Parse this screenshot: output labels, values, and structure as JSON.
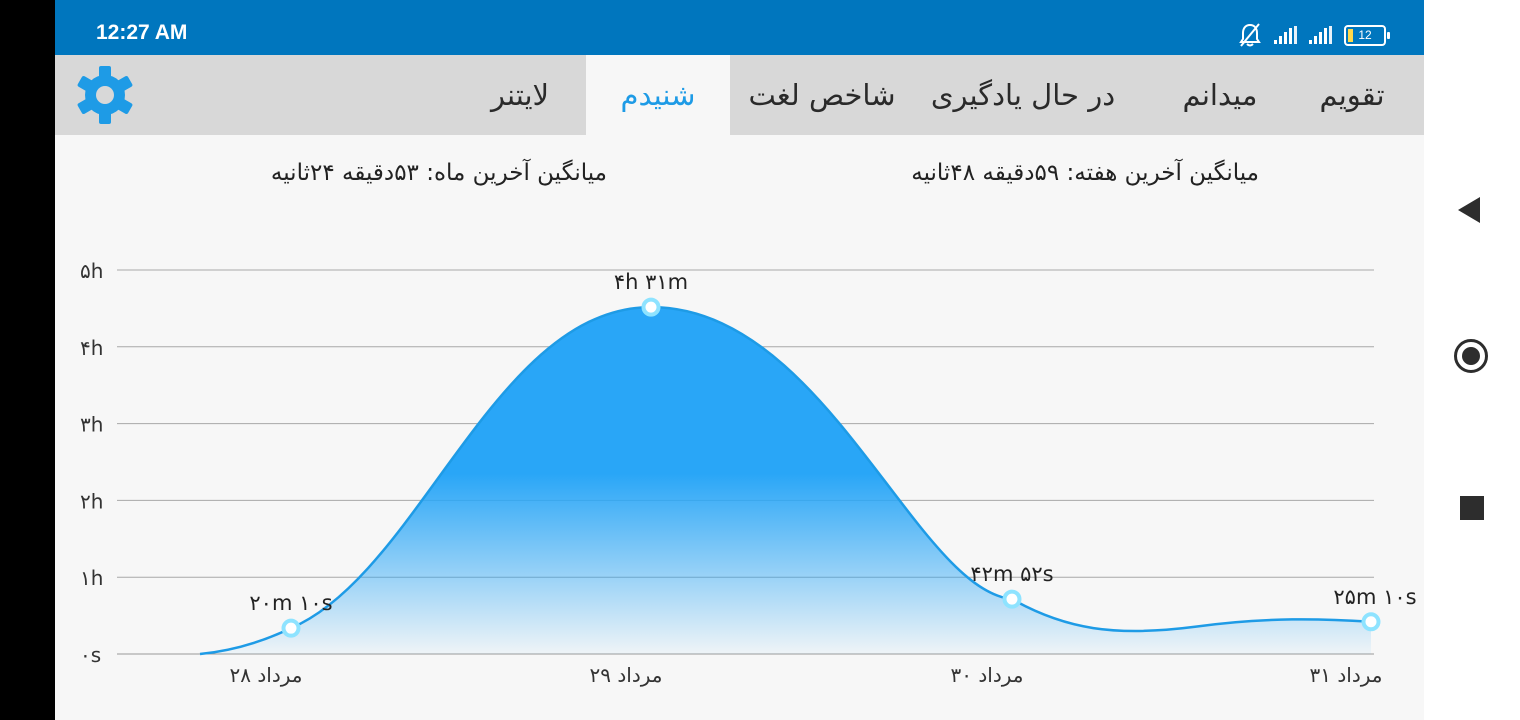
{
  "status_bar": {
    "time": "12:27 AM",
    "battery_level": "12",
    "icons": [
      "bell-muted-icon",
      "signal-icon",
      "signal-icon",
      "battery-icon"
    ]
  },
  "tabs": [
    {
      "label": "تقویم",
      "active": false
    },
    {
      "label": "میدانم",
      "active": false
    },
    {
      "label": "در حال یادگیری",
      "active": false
    },
    {
      "label": "شاخص لغت",
      "active": false
    },
    {
      "label": "شنیدم",
      "active": true
    },
    {
      "label": "لایتنر",
      "active": false
    }
  ],
  "settings_icon": "gear-icon",
  "averages": {
    "week": "میانگین آخرین هفته: ۵۹دقیقه  ۴۸ثانیه",
    "month": "میانگین آخرین ماه: ۵۳دقیقه  ۲۴ثانیه"
  },
  "chart_data": {
    "type": "area",
    "categories": [
      "۲۸ مرداد",
      "۲۹ مرداد",
      "۳۰ مرداد",
      "۳۱ مرداد"
    ],
    "values_minutes": [
      20.17,
      271,
      42.87,
      25.17
    ],
    "data_labels": [
      "۲۰m ۱۰s",
      "۴h ۳۱m",
      "۴۲m ۵۲s",
      "۲۵m ۱۰s"
    ],
    "y_ticks": [
      "۰s",
      "۱h",
      "۲h",
      "۳h",
      "۴h",
      "۵h"
    ],
    "ylim_minutes": [
      0,
      300
    ],
    "grid": true,
    "fill_color": "#29a6f7",
    "line_color": "#1e9be6",
    "point_color": "#8ee3ff"
  },
  "nav_bar": {
    "icons": [
      "back-icon",
      "home-icon",
      "recents-icon"
    ]
  }
}
